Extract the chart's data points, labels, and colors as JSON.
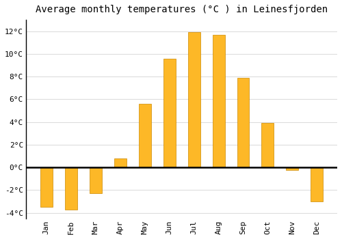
{
  "title": "Average monthly temperatures (°C ) in Leinesfjorden",
  "months": [
    "Jan",
    "Feb",
    "Mar",
    "Apr",
    "May",
    "Jun",
    "Jul",
    "Aug",
    "Sep",
    "Oct",
    "Nov",
    "Dec"
  ],
  "values": [
    -3.5,
    -3.7,
    -2.3,
    0.8,
    5.6,
    9.6,
    11.9,
    11.7,
    7.9,
    3.9,
    -0.2,
    -3.0
  ],
  "bar_color": "#FDB827",
  "bar_edge_color": "#CC8800",
  "ylim": [
    -4.5,
    13.0
  ],
  "yticks": [
    -4,
    -2,
    0,
    2,
    4,
    6,
    8,
    10,
    12
  ],
  "ytick_labels": [
    "-4°C",
    "-2°C",
    "0°C",
    "2°C",
    "4°C",
    "6°C",
    "8°C",
    "10°C",
    "12°C"
  ],
  "background_color": "#ffffff",
  "plot_bg_color": "#ffffff",
  "grid_color": "#dddddd",
  "title_fontsize": 10,
  "tick_fontsize": 8,
  "zero_line_color": "#000000",
  "left_spine_color": "#000000"
}
